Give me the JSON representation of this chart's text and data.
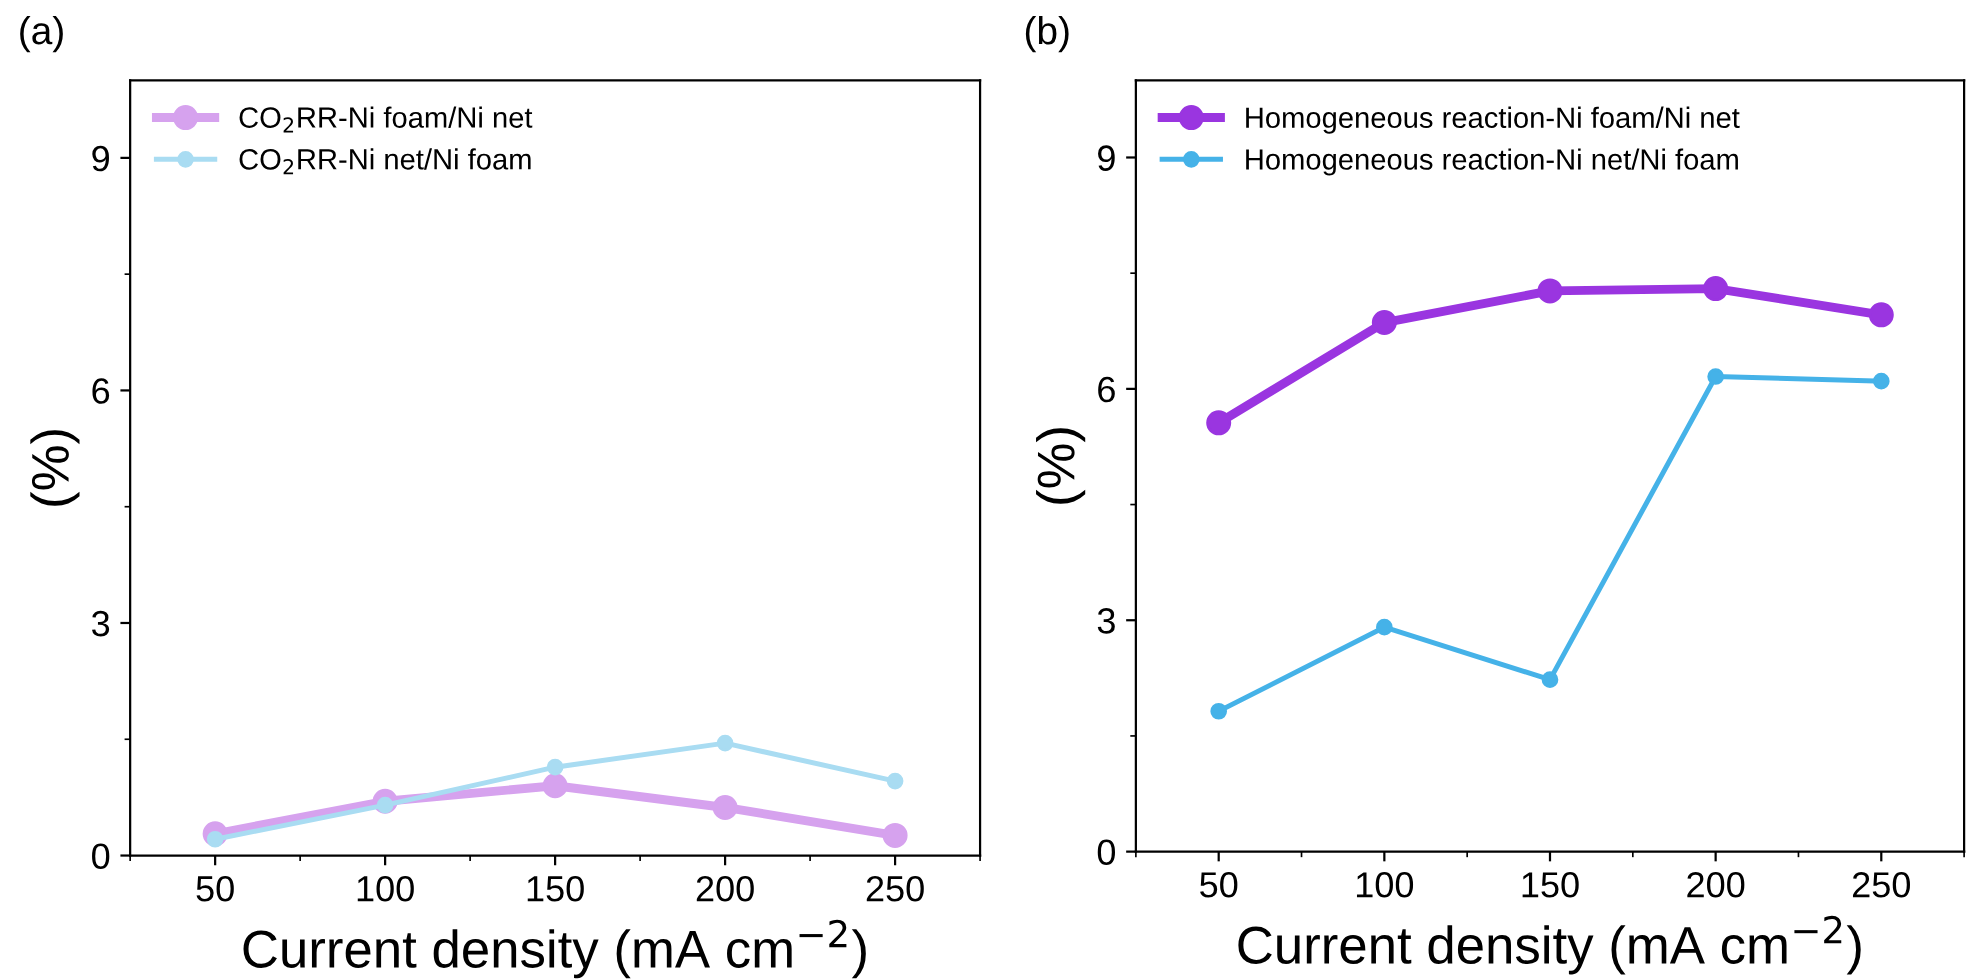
{
  "chart_data": [
    {
      "type": "line",
      "title": "(a)",
      "xlabel": "Current density (mA cm$^{−2}$)",
      "ylabel": "(%)",
      "x": [
        50,
        100,
        150,
        200,
        250
      ],
      "xlim": [
        25,
        275
      ],
      "xticks": [
        50,
        100,
        150,
        200,
        250
      ],
      "ylim": [
        0,
        10
      ],
      "yticks": [
        0,
        3,
        6,
        9
      ],
      "marker": "circle",
      "line_style": "solid",
      "legend": "top left",
      "grid": false,
      "series": [
        {
          "name": "CO$_{2}$RR-Ni foam/Ni net",
          "color": "#d6a2ee",
          "values": [
            0.28,
            0.7,
            0.9,
            0.62,
            0.26
          ]
        },
        {
          "name": "CO$_{2}$RR-Ni net/Ni foam",
          "color": "#a9dcf2",
          "values": [
            0.21,
            0.65,
            1.14,
            1.45,
            0.96
          ]
        }
      ]
    },
    {
      "type": "line",
      "title": "(b)",
      "xlabel": "Current density (mA cm$^{−2}$)",
      "ylabel": "(%)",
      "x": [
        50,
        100,
        150,
        200,
        250
      ],
      "xlim": [
        25,
        275
      ],
      "xticks": [
        50,
        100,
        150,
        200,
        250
      ],
      "ylim": [
        0,
        10
      ],
      "yticks": [
        0,
        3,
        6,
        9
      ],
      "marker": "circle",
      "line_style": "solid",
      "legend": "top left",
      "grid": false,
      "series": [
        {
          "name": "Homogeneous reaction-Ni foam/Ni net",
          "color": "#9a35e0",
          "values": [
            5.56,
            6.86,
            7.27,
            7.3,
            6.96
          ]
        },
        {
          "name": "Homogeneous reaction-Ni net/Ni foam",
          "color": "#45b2e8",
          "values": [
            1.82,
            2.91,
            2.23,
            6.16,
            6.1
          ]
        }
      ]
    }
  ]
}
